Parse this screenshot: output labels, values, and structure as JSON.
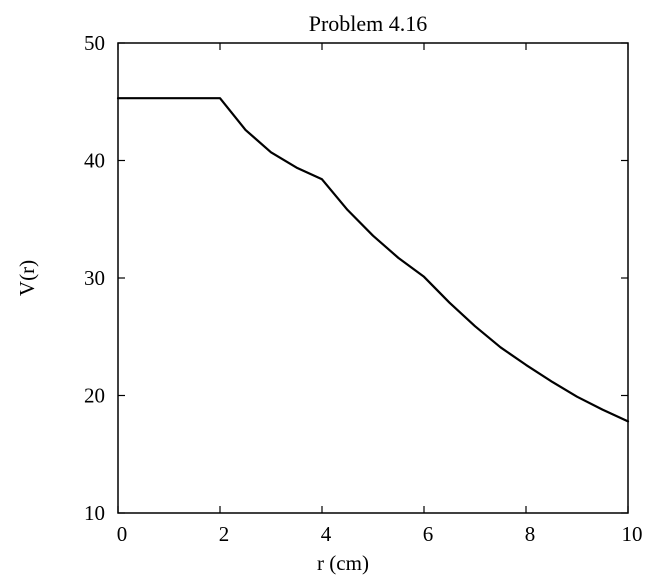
{
  "chart_data": {
    "type": "line",
    "title": "Problem 4.16",
    "xlabel": "r (cm)",
    "ylabel": "V(r)",
    "xlim": [
      0,
      10
    ],
    "ylim": [
      10,
      50
    ],
    "x_ticks": [
      "0",
      "2",
      "4",
      "6",
      "8",
      "10"
    ],
    "y_ticks": [
      "10",
      "20",
      "30",
      "40",
      "50"
    ],
    "grid": false,
    "series": [
      {
        "color": "#000000",
        "x": [
          0,
          1,
          2,
          2.5,
          3,
          3.5,
          4,
          4.5,
          5,
          5.5,
          6,
          6.5,
          7,
          7.5,
          8,
          8.5,
          9,
          9.5,
          10
        ],
        "y": [
          45.3,
          45.3,
          45.3,
          42.6,
          40.7,
          39.4,
          38.4,
          35.8,
          33.6,
          31.7,
          30.1,
          27.9,
          25.9,
          24.1,
          22.6,
          21.2,
          19.9,
          18.8,
          17.8
        ]
      }
    ]
  }
}
